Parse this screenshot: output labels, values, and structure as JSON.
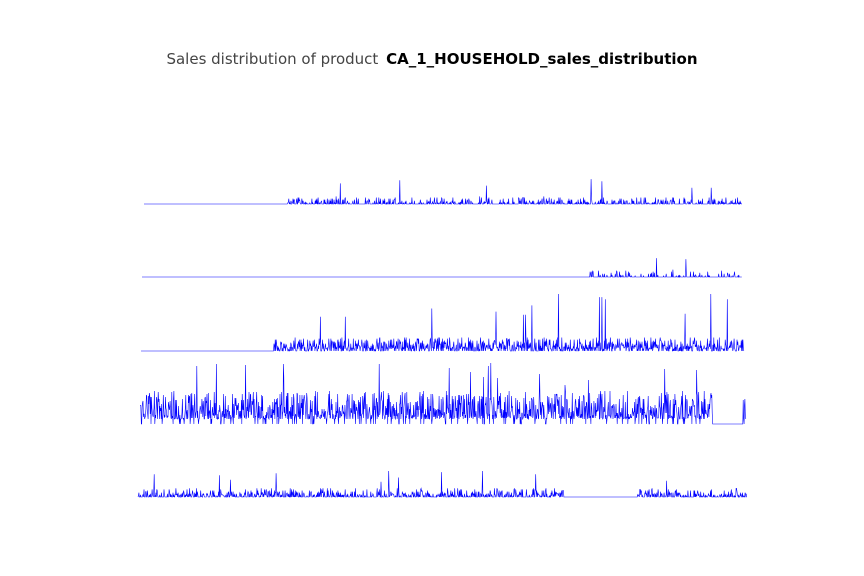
{
  "chart_data": {
    "type": "line",
    "title_prefix": "Sales distribution of product",
    "title": "CA_1_HOUSEHOLD_sales_distribution",
    "line_color": "#0000ff",
    "axes_visible": false,
    "x_range": [
      0,
      1000
    ],
    "series": [
      {
        "name": "panel-1",
        "start": 240,
        "end": 1000,
        "baseline": 0,
        "max_value": 24,
        "typical_value": 4,
        "density": 0.35
      },
      {
        "name": "panel-2",
        "start": 740,
        "end": 1000,
        "baseline": 0,
        "max_value": 19,
        "typical_value": 4,
        "density": 0.2
      },
      {
        "name": "panel-3",
        "start": 220,
        "end": 1000,
        "baseline": 0,
        "max_value": 55,
        "typical_value": 8,
        "density": 0.7
      },
      {
        "name": "panel-4",
        "start": 0,
        "end": 1000,
        "baseline": 0,
        "max_value": 62,
        "typical_value": 20,
        "density": 0.92,
        "gap": [
          945,
          995
        ]
      },
      {
        "name": "panel-5",
        "start": 0,
        "end": 1000,
        "baseline": 0,
        "max_value": 24,
        "typical_value": 5,
        "density": 0.5,
        "gap": [
          700,
          820
        ]
      }
    ]
  }
}
